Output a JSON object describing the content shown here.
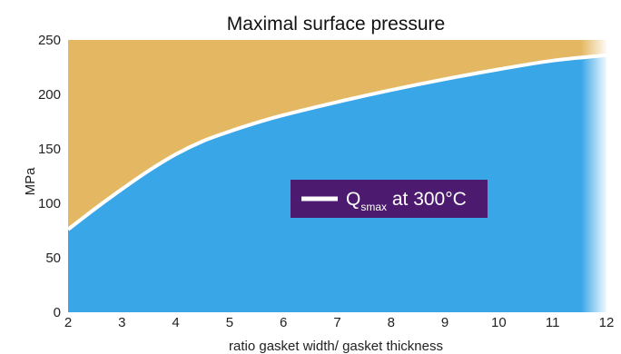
{
  "chart_data": {
    "type": "area",
    "title": "Maximal surface pressure",
    "xlabel": "ratio gasket width/ gasket thickness",
    "ylabel": "MPa",
    "xlim": [
      2,
      12
    ],
    "ylim": [
      0,
      250
    ],
    "x_ticks": [
      "2",
      "3",
      "4",
      "5",
      "6",
      "7",
      "8",
      "9",
      "10",
      "11",
      "12"
    ],
    "y_ticks": [
      "0",
      "50",
      "100",
      "150",
      "200",
      "250"
    ],
    "grid": false,
    "series": [
      {
        "name": "Q smax at 300°C",
        "name_main": "Q",
        "name_sub": "smax",
        "name_suffix": " at 300°C",
        "x": [
          2,
          2.5,
          3,
          3.5,
          4,
          4.5,
          5,
          5.5,
          6,
          7,
          8,
          9,
          10,
          11,
          12
        ],
        "y": [
          76,
          95,
          113,
          130,
          145,
          157,
          166,
          174,
          181,
          193,
          204,
          214,
          223,
          231,
          236
        ]
      }
    ],
    "legend": {
      "position": "center-right"
    },
    "colors": {
      "area_below": "#39a6e8",
      "area_above": "#e4b862",
      "curve": "#ffffff",
      "legend_bg": "#4c1a6e"
    }
  }
}
